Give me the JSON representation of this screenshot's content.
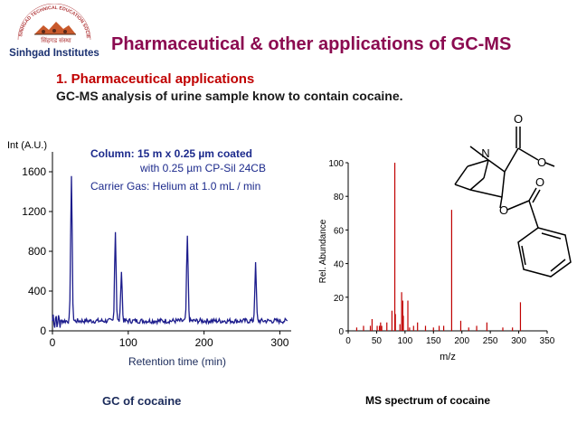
{
  "header": {
    "logo_text_top": "SINHGAD TECHNICAL EDUCATION SOCIETY, PUNE",
    "logo_text_devanagari": "सिंहगड संस्था",
    "logo_name": "Sinhgad Institutes",
    "title": "Pharmaceutical & other applications of GC-MS"
  },
  "content": {
    "section": "1.  Pharmaceutical applications",
    "subtitle": "GC-MS analysis of urine sample know to contain cocaine."
  },
  "captions": {
    "gc": "GC of cocaine",
    "ms": "MS spectrum of cocaine"
  },
  "colors": {
    "title": "#8b0a50",
    "section": "#c00000",
    "gc_trace": "#1c1c8c",
    "ms_bars": "#c00000",
    "gc_annotation": "#1c2a8c"
  },
  "chart_data": [
    {
      "type": "line",
      "ylabel": "Int (A.U.)",
      "xlabel": "Retention time (min)",
      "xlim": [
        0,
        315
      ],
      "ylim": [
        0,
        1800
      ],
      "xticks": [
        0,
        100,
        200,
        300
      ],
      "yticks": [
        0,
        400,
        800,
        1200,
        1600
      ],
      "grid": false,
      "annotations": [
        "Column: 15 m x  0.25 µm coated",
        "with 0.25 µm CP-Sil 24CB",
        "Carrier Gas: Helium at 1.0 mL / min"
      ],
      "peaks": [
        {
          "x": 25,
          "y": 1560
        },
        {
          "x": 83,
          "y": 1000
        },
        {
          "x": 91,
          "y": 600
        },
        {
          "x": 178,
          "y": 950
        },
        {
          "x": 268,
          "y": 670
        }
      ],
      "baseline": 100
    },
    {
      "type": "bar",
      "xlabel": "m/z",
      "ylabel": "Rel. Abundance",
      "xlim": [
        0,
        350
      ],
      "ylim": [
        0,
        100
      ],
      "xticks": [
        0,
        50,
        100,
        150,
        200,
        250,
        300,
        350
      ],
      "yticks": [
        0,
        20,
        40,
        60,
        80,
        100
      ],
      "grid": false,
      "x": [
        15,
        27,
        39,
        42,
        51,
        55,
        57,
        59,
        68,
        77,
        82,
        83,
        91,
        94,
        96,
        97,
        105,
        108,
        115,
        122,
        136,
        150,
        160,
        168,
        182,
        198,
        212,
        226,
        244,
        272,
        289,
        303
      ],
      "values": [
        2,
        3,
        3,
        7,
        3,
        3,
        5,
        3,
        5,
        12,
        100,
        10,
        4,
        23,
        18,
        9,
        18,
        2,
        3,
        5,
        3,
        2,
        3,
        3,
        72,
        6,
        2,
        3,
        5,
        2,
        2,
        17
      ]
    }
  ],
  "molecule": {
    "atom_labels": [
      "O",
      "O",
      "N",
      "O",
      "O"
    ]
  }
}
